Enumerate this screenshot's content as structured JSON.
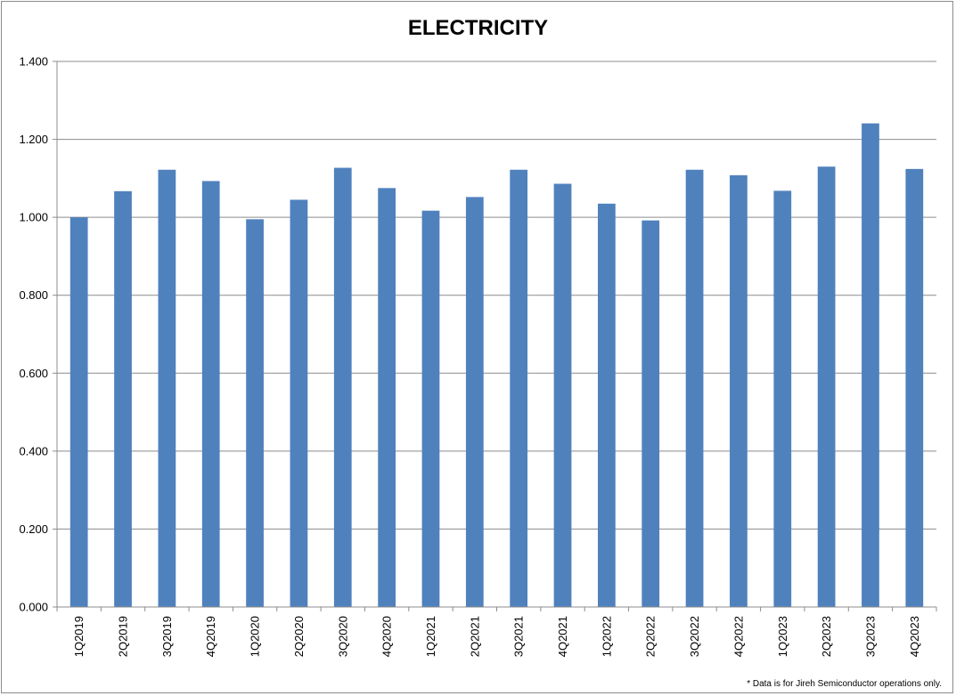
{
  "chart_data": {
    "type": "bar",
    "title": "ELECTRICITY",
    "xlabel": "",
    "ylabel": "",
    "ylim": [
      0,
      1.4
    ],
    "yticks": [
      "0.000",
      "0.200",
      "0.400",
      "0.600",
      "0.800",
      "1.000",
      "1.200",
      "1.400"
    ],
    "grid": true,
    "legend": "none",
    "bar_color": "#4f81bd",
    "categories": [
      "1Q2019",
      "2Q2019",
      "3Q2019",
      "4Q2019",
      "1Q2020",
      "2Q2020",
      "3Q2020",
      "4Q2020",
      "1Q2021",
      "2Q2021",
      "3Q2021",
      "4Q2021",
      "1Q2022",
      "2Q2022",
      "3Q2022",
      "4Q2022",
      "1Q2023",
      "2Q2023",
      "3Q2023",
      "4Q2023"
    ],
    "values": [
      1.0,
      1.067,
      1.122,
      1.093,
      0.995,
      1.045,
      1.127,
      1.075,
      1.017,
      1.052,
      1.122,
      1.086,
      1.035,
      0.992,
      1.122,
      1.108,
      1.068,
      1.13,
      1.241,
      1.124
    ]
  },
  "footnote": "* Data is for Jireh Semiconductor operations only."
}
